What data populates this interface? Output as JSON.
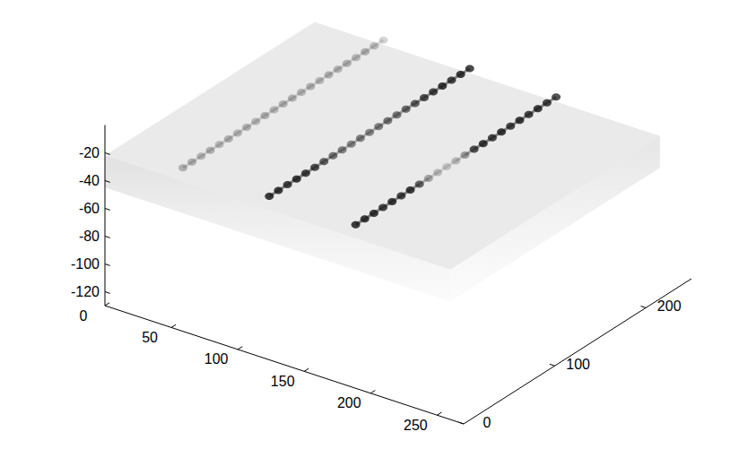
{
  "chart_data": {
    "type": "volume",
    "xlim": [
      0,
      270
    ],
    "ylim": [
      0,
      250
    ],
    "zlim": [
      -130,
      0
    ],
    "xticks": [
      0,
      50,
      100,
      150,
      200,
      250
    ],
    "yticks": [
      0,
      100,
      200
    ],
    "zticks": [
      -120,
      -100,
      -80,
      -60,
      -40,
      -20
    ],
    "slab": {
      "x": [
        0,
        260
      ],
      "y": [
        0,
        230
      ],
      "z": [
        -45,
        -22
      ]
    },
    "series": [
      {
        "x": 45,
        "z": -25,
        "y": [
          20,
          30,
          40,
          50,
          60,
          70,
          80,
          90,
          100,
          110,
          120,
          130,
          140,
          150,
          160,
          170,
          180,
          190,
          200,
          210,
          220,
          230,
          240
        ],
        "values": [
          0.3,
          0.3,
          0.28,
          0.3,
          0.27,
          0.3,
          0.28,
          0.3,
          0.27,
          0.3,
          0.28,
          0.3,
          0.3,
          0.28,
          0.3,
          0.27,
          0.3,
          0.28,
          0.3,
          0.27,
          0.3,
          0.25,
          0.2
        ]
      },
      {
        "x": 110,
        "z": -25,
        "y": [
          20,
          30,
          40,
          50,
          60,
          70,
          80,
          90,
          100,
          110,
          120,
          130,
          140,
          150,
          160,
          170,
          180,
          190,
          200,
          210,
          220,
          230,
          240
        ],
        "values": [
          0.9,
          0.9,
          0.85,
          0.9,
          0.85,
          0.8,
          0.7,
          0.6,
          0.55,
          0.5,
          0.55,
          0.5,
          0.55,
          0.6,
          0.6,
          0.65,
          0.7,
          0.8,
          0.85,
          0.9,
          0.85,
          0.9,
          0.85
        ]
      },
      {
        "x": 175,
        "z": -25,
        "y": [
          20,
          30,
          40,
          50,
          60,
          70,
          80,
          90,
          100,
          110,
          120,
          130,
          140,
          150,
          160,
          170,
          180,
          190,
          200,
          210,
          220,
          230,
          240
        ],
        "values": [
          0.9,
          0.9,
          0.9,
          0.85,
          0.9,
          0.85,
          0.9,
          0.7,
          0.35,
          0.25,
          0.2,
          0.25,
          0.4,
          0.8,
          0.9,
          0.85,
          0.9,
          0.85,
          0.9,
          0.85,
          0.9,
          0.85,
          0.8
        ]
      }
    ]
  }
}
